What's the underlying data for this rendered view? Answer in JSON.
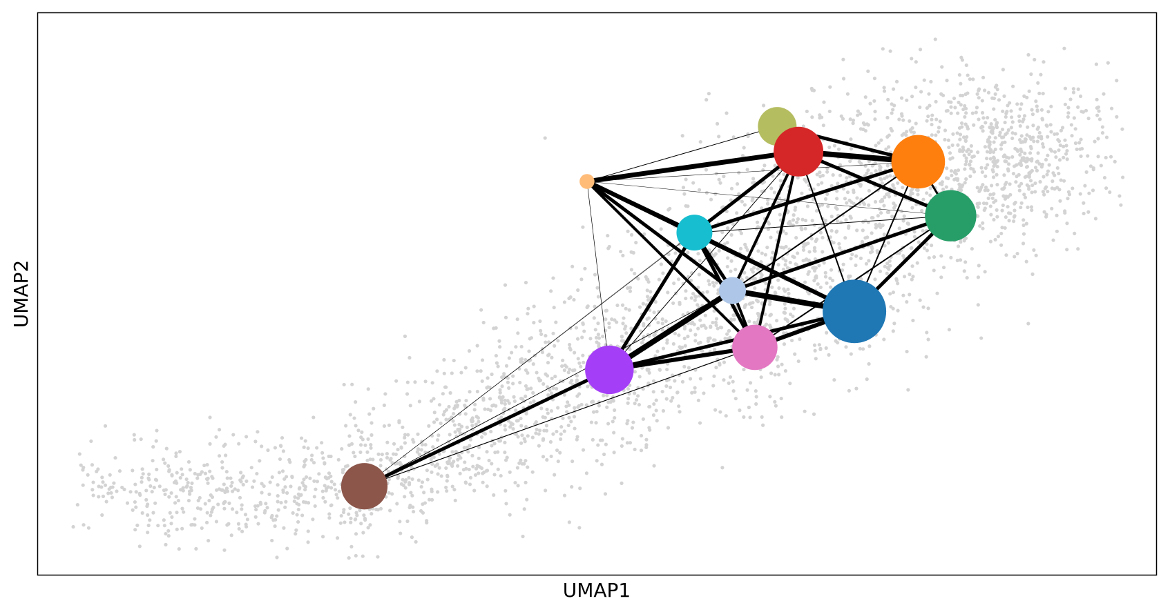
{
  "chart_data": {
    "type": "scatter",
    "title": "",
    "xlabel": "UMAP1",
    "ylabel": "UMAP2",
    "xlim": [
      0,
      100
    ],
    "ylim": [
      0,
      100
    ],
    "grid": false,
    "legend": "none",
    "ticks": "none",
    "background_cell_color": "#d3d3d3",
    "nodes": [
      {
        "id": "brown",
        "color": "#8c564b",
        "x": 29.2,
        "y": 15.8,
        "size": 0.84
      },
      {
        "id": "purple",
        "color": "#a53ff7",
        "x": 51.1,
        "y": 36.5,
        "size": 0.88
      },
      {
        "id": "pink",
        "color": "#e377c2",
        "x": 64.1,
        "y": 40.5,
        "size": 0.82
      },
      {
        "id": "lightblue",
        "color": "#aec7e8",
        "x": 62.1,
        "y": 50.6,
        "size": 0.49
      },
      {
        "id": "teal",
        "color": "#17becf",
        "x": 58.7,
        "y": 60.9,
        "size": 0.65
      },
      {
        "id": "peach",
        "color": "#ffbb78",
        "x": 49.1,
        "y": 70.0,
        "size": 0.27
      },
      {
        "id": "olive",
        "color": "#b5bd61",
        "x": 66.1,
        "y": 79.8,
        "size": 0.7
      },
      {
        "id": "red",
        "color": "#d62728",
        "x": 68.0,
        "y": 75.3,
        "size": 0.9
      },
      {
        "id": "orange",
        "color": "#ff7f0e",
        "x": 78.7,
        "y": 73.5,
        "size": 0.97
      },
      {
        "id": "green",
        "color": "#279e68",
        "x": 81.6,
        "y": 63.9,
        "size": 0.93
      },
      {
        "id": "steelblue",
        "color": "#1f77b4",
        "x": 73.0,
        "y": 46.9,
        "size": 1.15
      }
    ],
    "edges": [
      {
        "from": "brown",
        "to": "purple",
        "weight": 5
      },
      {
        "from": "brown",
        "to": "pink",
        "weight": 1.2
      },
      {
        "from": "brown",
        "to": "teal",
        "weight": 0.6
      },
      {
        "from": "brown",
        "to": "lightblue",
        "weight": 0.9
      },
      {
        "from": "brown",
        "to": "red",
        "weight": 0.4
      },
      {
        "from": "purple",
        "to": "pink",
        "weight": 6
      },
      {
        "from": "purple",
        "to": "lightblue",
        "weight": 8
      },
      {
        "from": "purple",
        "to": "teal",
        "weight": 5
      },
      {
        "from": "purple",
        "to": "steelblue",
        "weight": 5
      },
      {
        "from": "purple",
        "to": "red",
        "weight": 1
      },
      {
        "from": "purple",
        "to": "peach",
        "weight": 0.7
      },
      {
        "from": "pink",
        "to": "lightblue",
        "weight": 4
      },
      {
        "from": "pink",
        "to": "teal",
        "weight": 5
      },
      {
        "from": "pink",
        "to": "steelblue",
        "weight": 6
      },
      {
        "from": "pink",
        "to": "red",
        "weight": 4
      },
      {
        "from": "pink",
        "to": "green",
        "weight": 2
      },
      {
        "from": "pink",
        "to": "peach",
        "weight": 4
      },
      {
        "from": "lightblue",
        "to": "teal",
        "weight": 5
      },
      {
        "from": "lightblue",
        "to": "steelblue",
        "weight": 8
      },
      {
        "from": "lightblue",
        "to": "red",
        "weight": 4
      },
      {
        "from": "lightblue",
        "to": "orange",
        "weight": 2
      },
      {
        "from": "lightblue",
        "to": "green",
        "weight": 5
      },
      {
        "from": "lightblue",
        "to": "peach",
        "weight": 5
      },
      {
        "from": "teal",
        "to": "red",
        "weight": 5
      },
      {
        "from": "teal",
        "to": "orange",
        "weight": 5
      },
      {
        "from": "teal",
        "to": "green",
        "weight": 1
      },
      {
        "from": "teal",
        "to": "steelblue",
        "weight": 5
      },
      {
        "from": "teal",
        "to": "peach",
        "weight": 6
      },
      {
        "from": "peach",
        "to": "red",
        "weight": 7
      },
      {
        "from": "peach",
        "to": "olive",
        "weight": 1
      },
      {
        "from": "peach",
        "to": "steelblue",
        "weight": 6
      },
      {
        "from": "peach",
        "to": "orange",
        "weight": 0.6
      },
      {
        "from": "peach",
        "to": "green",
        "weight": 0.5
      },
      {
        "from": "red",
        "to": "orange",
        "weight": 8
      },
      {
        "from": "red",
        "to": "green",
        "weight": 5
      },
      {
        "from": "red",
        "to": "steelblue",
        "weight": 2
      },
      {
        "from": "olive",
        "to": "orange",
        "weight": 5
      },
      {
        "from": "orange",
        "to": "green",
        "weight": 3
      },
      {
        "from": "orange",
        "to": "steelblue",
        "weight": 2
      },
      {
        "from": "green",
        "to": "steelblue",
        "weight": 5
      }
    ]
  }
}
